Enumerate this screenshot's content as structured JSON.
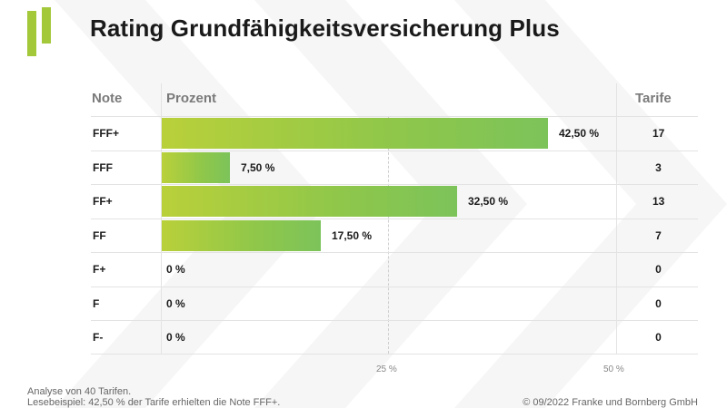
{
  "title": "Rating Grundfähigkeitsversicherung Plus",
  "headers": {
    "note": "Note",
    "prozent": "Prozent",
    "tarife": "Tarife"
  },
  "chart_data": {
    "type": "bar",
    "orientation": "horizontal",
    "categories": [
      "FFF+",
      "FFF",
      "FF+",
      "FF",
      "F+",
      "F",
      "F-"
    ],
    "values": [
      42.5,
      7.5,
      32.5,
      17.5,
      0,
      0,
      0
    ],
    "value_labels": [
      "42,50 %",
      "7,50 %",
      "32,50 %",
      "17,50 %",
      "0 %",
      "0 %",
      "0 %"
    ],
    "tarife": [
      "17",
      "3",
      "13",
      "7",
      "0",
      "0",
      "0"
    ],
    "xlim": [
      0,
      50
    ],
    "x_ticks": [
      25,
      50
    ],
    "x_tick_labels": [
      "25 %",
      "50 %"
    ],
    "bar_color": "#9ccb45"
  },
  "footer": {
    "line1": "Analyse von 40 Tarifen.",
    "line2": "Lesebeispiel: 42,50 % der Tarife erhielten die Note FFF+.",
    "copyright": "© 09/2022 Franke und Bornberg GmbH"
  }
}
